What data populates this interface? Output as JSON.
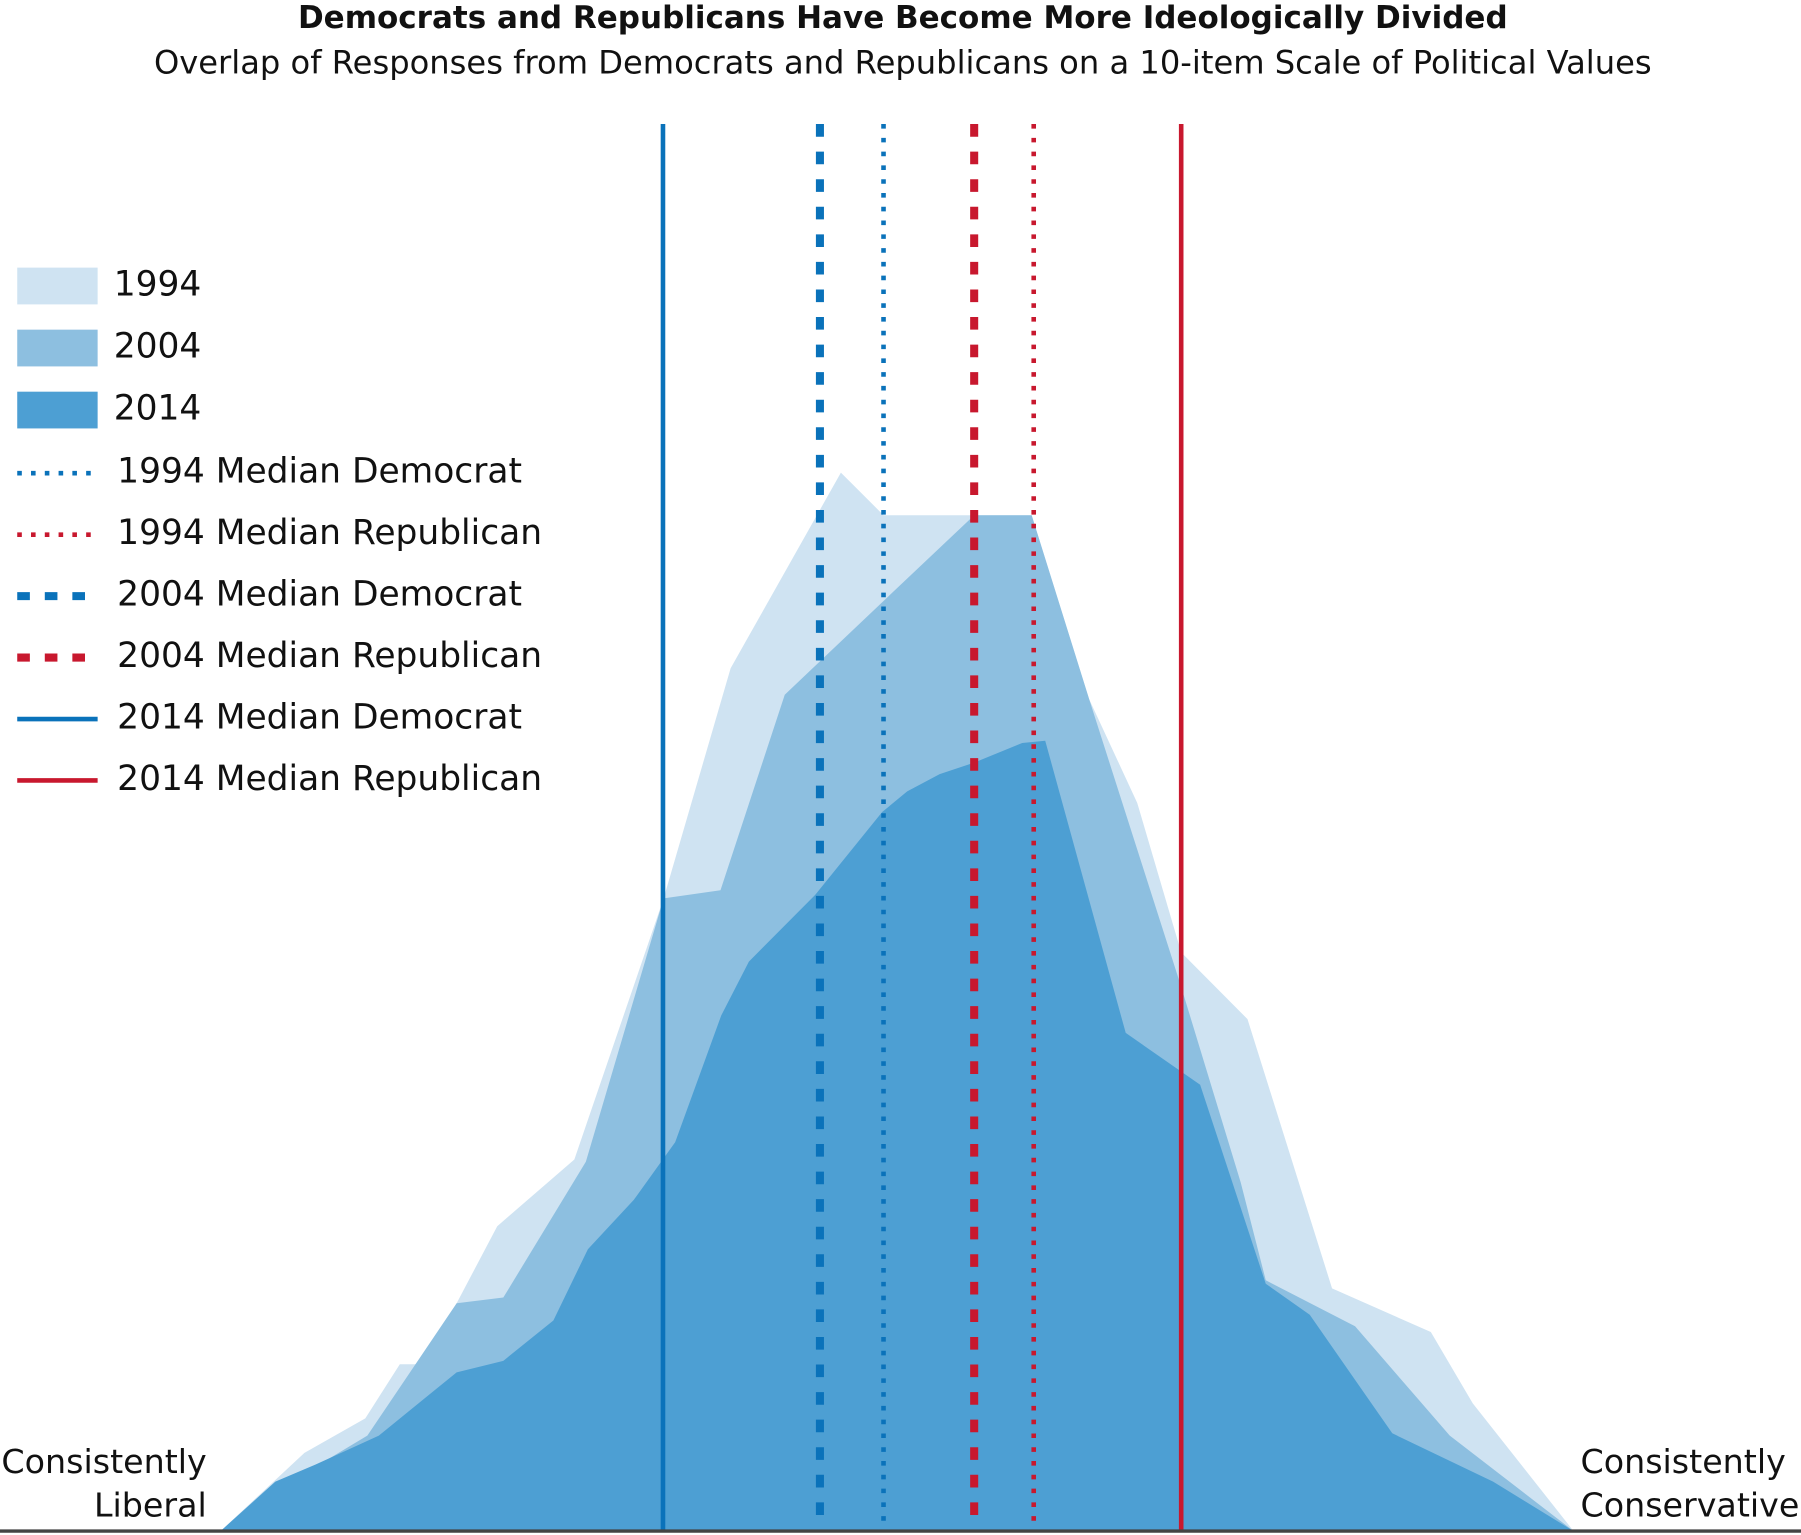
{
  "chart_data": {
    "type": "area",
    "title": "Democrats and Republicans Have Become More Ideologically Divided",
    "subtitle": "Overlap of Responses from Democrats and Republicans on a 10-item Scale of Political Values",
    "left_label_lines": [
      "Consistently",
      "Liberal"
    ],
    "right_label_lines": [
      "Consistently",
      "Conservative"
    ],
    "xlim": [
      -10,
      10
    ],
    "ylim": [
      0,
      122.3
    ],
    "series": [
      {
        "name": "1994",
        "color": "#cfe3f2",
        "x": [
          -10,
          -8.76,
          -7.86,
          -7.35,
          -6.98,
          -6.51,
          -5.91,
          -4.77,
          -3.45,
          -2.46,
          -0.83,
          -0.2,
          1.99,
          2.84,
          3.55,
          4.2,
          5.18,
          6.43,
          7.89,
          8.51,
          10
        ],
        "values": [
          0,
          6.8,
          9.8,
          14.5,
          14.5,
          19.8,
          26.5,
          32.3,
          55,
          75,
          92,
          88.3,
          88.3,
          72.3,
          63.3,
          50.3,
          44.5,
          21.1,
          17.3,
          11.1,
          0
        ]
      },
      {
        "name": "2004",
        "color": "#8dbfe0",
        "x": [
          -10,
          -9.19,
          -8.68,
          -7.83,
          -6.51,
          -5.82,
          -4.6,
          -3.45,
          -2.61,
          -1.66,
          -0.19,
          1.14,
          1.99,
          2.84,
          4.2,
          5.08,
          5.45,
          6.77,
          8.17,
          10
        ],
        "values": [
          0,
          3.8,
          5.3,
          8.3,
          19.8,
          20.3,
          32.1,
          55,
          55.7,
          72.7,
          80.9,
          88.3,
          88.3,
          72.3,
          47.3,
          30.3,
          21.8,
          17.8,
          8.3,
          0
        ]
      },
      {
        "name": "2014",
        "color": "#4d9fd3",
        "x": [
          -10,
          -9.19,
          -8.59,
          -7.66,
          -6.51,
          -5.82,
          -5.08,
          -4.57,
          -3.89,
          -3.28,
          -2.6,
          -2.19,
          -1.21,
          -0.22,
          0.15,
          0.63,
          1.14,
          1.85,
          2.19,
          3.38,
          4.48,
          5.45,
          6.1,
          7.32,
          8.81,
          10
        ],
        "values": [
          0,
          4.3,
          5.8,
          8.3,
          13.8,
          14.8,
          18.3,
          24.5,
          28.8,
          33.8,
          44.8,
          49.5,
          55.3,
          62.5,
          64.3,
          65.8,
          66.8,
          68.5,
          68.7,
          43.3,
          38.8,
          21.5,
          18.8,
          8.5,
          4.3,
          0
        ]
      }
    ],
    "medians": [
      {
        "name": "1994 Median Democrat",
        "color": "#0a72ba",
        "style": "dotted",
        "value": -0.2
      },
      {
        "name": "1994 Median Republican",
        "color": "#c8182e",
        "style": "dotted",
        "value": 2.02
      },
      {
        "name": "2004 Median Democrat",
        "color": "#0a72ba",
        "style": "dashed",
        "value": -1.14
      },
      {
        "name": "2004 Median Republican",
        "color": "#c8182e",
        "style": "dashed",
        "value": 1.14
      },
      {
        "name": "2014 Median Democrat",
        "color": "#0a72ba",
        "style": "solid",
        "value": -3.46
      },
      {
        "name": "2014 Median Republican",
        "color": "#c8182e",
        "style": "solid",
        "value": 4.2
      }
    ]
  }
}
